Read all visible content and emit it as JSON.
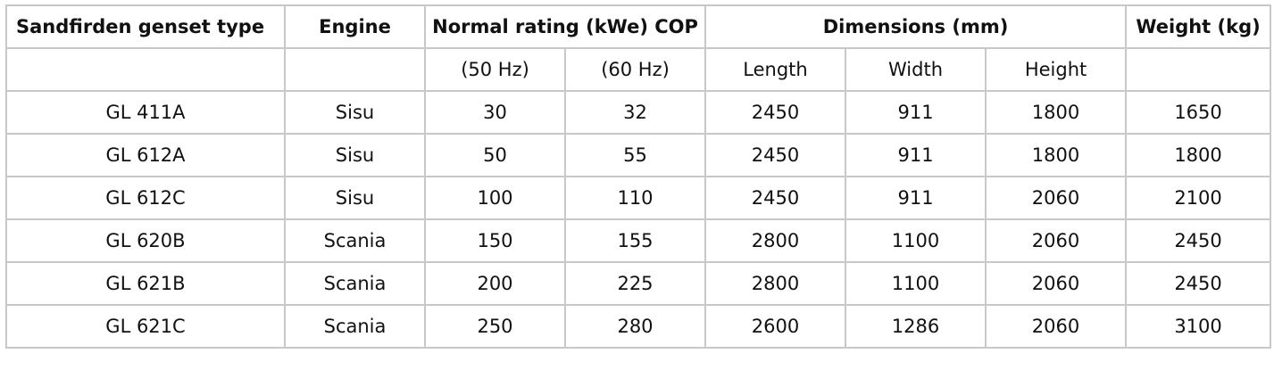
{
  "header": {
    "type": "Sandfirden genset type",
    "engine": "Engine",
    "rating": "Normal rating (kWe) COP",
    "dimensions": "Dimensions (mm)",
    "weight": "Weight (kg)"
  },
  "subheader": {
    "hz50": "(50 Hz)",
    "hz60": "(60 Hz)",
    "length": "Length",
    "width": "Width",
    "height": "Height"
  },
  "rows": [
    {
      "type": "GL 411A",
      "engine": "Sisu",
      "hz50": "30",
      "hz60": "32",
      "length": "2450",
      "width": "911",
      "height": "1800",
      "weight": "1650"
    },
    {
      "type": "GL 612A",
      "engine": "Sisu",
      "hz50": "50",
      "hz60": "55",
      "length": "2450",
      "width": "911",
      "height": "1800",
      "weight": "1800"
    },
    {
      "type": "GL 612C",
      "engine": "Sisu",
      "hz50": "100",
      "hz60": "110",
      "length": "2450",
      "width": "911",
      "height": "2060",
      "weight": "2100"
    },
    {
      "type": "GL 620B",
      "engine": "Scania",
      "hz50": "150",
      "hz60": "155",
      "length": "2800",
      "width": "1100",
      "height": "2060",
      "weight": "2450"
    },
    {
      "type": "GL 621B",
      "engine": "Scania",
      "hz50": "200",
      "hz60": "225",
      "length": "2800",
      "width": "1100",
      "height": "2060",
      "weight": "2450"
    },
    {
      "type": "GL 621C",
      "engine": "Scania",
      "hz50": "250",
      "hz60": "280",
      "length": "2600",
      "width": "1286",
      "height": "2060",
      "weight": "3100"
    }
  ]
}
